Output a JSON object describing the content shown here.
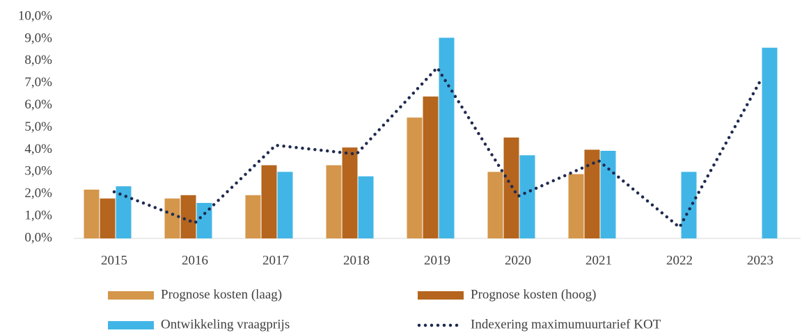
{
  "chart_data": {
    "type": "bar",
    "categories": [
      "2015",
      "2016",
      "2017",
      "2018",
      "2019",
      "2020",
      "2021",
      "2022",
      "2023"
    ],
    "series": [
      {
        "name": "Prognose kosten (laag)",
        "color": "#d4964a",
        "values": [
          2.2,
          1.8,
          1.95,
          3.3,
          5.45,
          3.0,
          2.9,
          null,
          null
        ]
      },
      {
        "name": "Prognose kosten (hoog)",
        "color": "#b5651d",
        "values": [
          1.8,
          1.95,
          3.3,
          4.1,
          6.4,
          4.55,
          4.0,
          null,
          null
        ]
      },
      {
        "name": "Ontwikkeling vraagprijs",
        "color": "#41b6e6",
        "values": [
          2.35,
          1.6,
          3.0,
          2.8,
          9.05,
          3.75,
          3.95,
          3.0,
          8.6
        ]
      },
      {
        "name": "Indexering maximumuurtarief KOT",
        "color": "#1f2a4f",
        "type": "line",
        "values": [
          2.1,
          0.7,
          4.2,
          3.8,
          7.7,
          1.9,
          3.5,
          0.5,
          7.1
        ]
      }
    ],
    "ylim": [
      0,
      10
    ],
    "yticks": [
      {
        "value": 0,
        "label": "0,0%"
      },
      {
        "value": 1,
        "label": "1,0%"
      },
      {
        "value": 2,
        "label": "2,0%"
      },
      {
        "value": 3,
        "label": "3,0%"
      },
      {
        "value": 4,
        "label": "4,0%"
      },
      {
        "value": 5,
        "label": "5,0%"
      },
      {
        "value": 6,
        "label": "6,0%"
      },
      {
        "value": 7,
        "label": "7,0%"
      },
      {
        "value": 8,
        "label": "8,0%"
      },
      {
        "value": 9,
        "label": "9,0%"
      },
      {
        "value": 10,
        "label": "10,0%"
      }
    ],
    "grid": false,
    "legend": "bottom"
  }
}
